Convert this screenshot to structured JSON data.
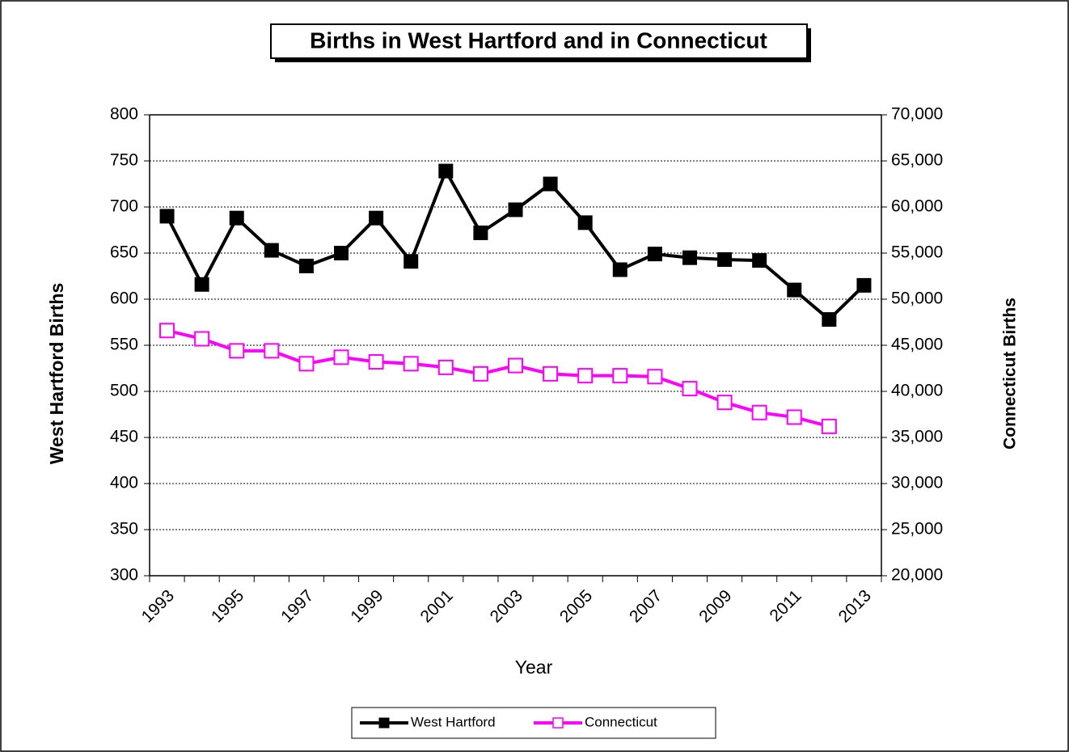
{
  "chart_data": {
    "type": "line",
    "title": "Births in West Hartford and in Connecticut",
    "x_label": "Year",
    "y_label": "West Hartford Births",
    "y2_label": "Connecticut Births",
    "categories": [
      "1993",
      null,
      "1995",
      null,
      "1997",
      null,
      "1999",
      null,
      "2001",
      null,
      "2003",
      null,
      "2005",
      null,
      "2007",
      null,
      "2009",
      null,
      "2011",
      null,
      "2013"
    ],
    "series": [
      {
        "name": "West Hartford",
        "color": "#000000",
        "axis": "y",
        "values": [
          690,
          616,
          688,
          653,
          636,
          650,
          688,
          641,
          739,
          672,
          697,
          725,
          683,
          632,
          649,
          645,
          643,
          642,
          610,
          578,
          615
        ]
      },
      {
        "name": "Connecticut",
        "color": "#ff00ff",
        "axis": "y2",
        "values": [
          46600,
          45700,
          44400,
          44400,
          43000,
          43700,
          43200,
          43000,
          42600,
          41900,
          42800,
          41900,
          41700,
          41700,
          41600,
          40300,
          38800,
          37700,
          37200,
          36200,
          null
        ]
      }
    ],
    "ylim": [
      300,
      800
    ],
    "yticks": [
      300,
      350,
      400,
      450,
      500,
      550,
      600,
      650,
      700,
      750,
      800
    ],
    "y2lim": [
      20000,
      70000
    ],
    "y2ticks": [
      {
        "value": 20000,
        "label": "20,000"
      },
      {
        "value": 25000,
        "label": "25,000"
      },
      {
        "value": 30000,
        "label": "30,000"
      },
      {
        "value": 35000,
        "label": "35,000"
      },
      {
        "value": 40000,
        "label": "40,000"
      },
      {
        "value": 45000,
        "label": "45,000"
      },
      {
        "value": 50000,
        "label": "50,000"
      },
      {
        "value": 55000,
        "label": "55,000"
      },
      {
        "value": 60000,
        "label": "60,000"
      },
      {
        "value": 65000,
        "label": "65,000"
      },
      {
        "value": 70000,
        "label": "70,000"
      }
    ],
    "grid": true,
    "legend": "bottom"
  }
}
